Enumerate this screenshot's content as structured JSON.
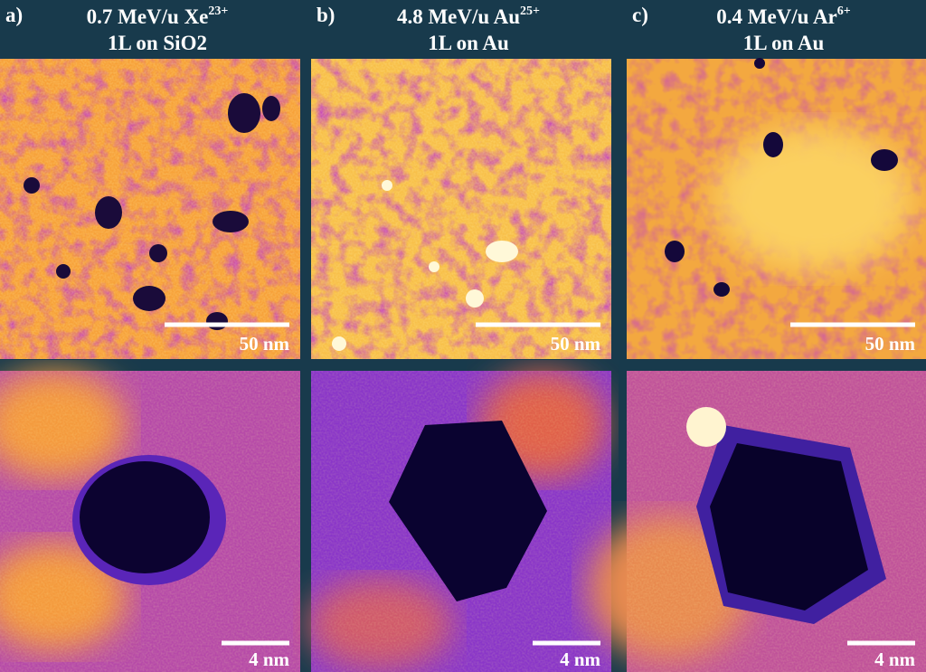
{
  "panels": [
    {
      "label": "a)",
      "ion": "0.7 MeV/u Xe",
      "charge": "23+",
      "substrate": "1L on SiO2",
      "scale_top": "50 nm",
      "scale_bottom": "4 nm"
    },
    {
      "label": "b)",
      "ion": "4.8 MeV/u Au",
      "charge": "25+",
      "substrate": "1L on Au",
      "scale_top": "50 nm",
      "scale_bottom": "4 nm"
    },
    {
      "label": "c)",
      "ion": "0.4 MeV/u Ar",
      "charge": "6+",
      "substrate": "1L on Au",
      "scale_top": "50 nm",
      "scale_bottom": "4 nm"
    }
  ]
}
